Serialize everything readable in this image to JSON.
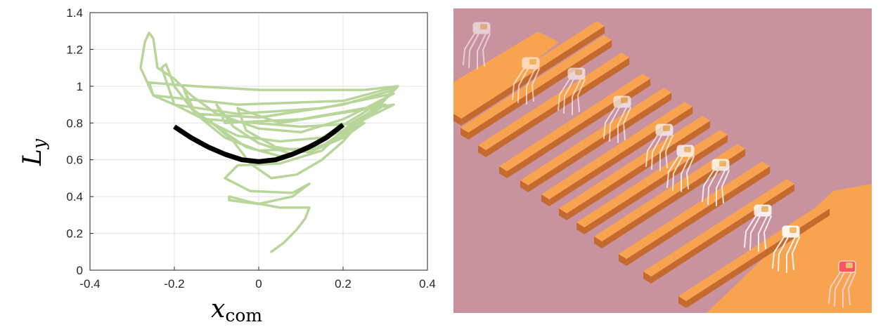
{
  "chart_data": {
    "type": "line",
    "xlabel": "x",
    "xlabel_sub": "com",
    "ylabel": "L",
    "ylabel_sub": "y",
    "xlim": [
      -0.4,
      0.4
    ],
    "ylim": [
      0,
      1.4
    ],
    "x_ticks": [
      "-0.4",
      "-0.2",
      "0",
      "0.2",
      "0.4"
    ],
    "y_ticks": [
      "0",
      "0.2",
      "0.4",
      "0.6",
      "0.8",
      "1",
      "1.2",
      "1.4"
    ],
    "x_tick_values": [
      -0.4,
      -0.2,
      0,
      0.2,
      0.4
    ],
    "y_tick_values": [
      0,
      0.2,
      0.4,
      0.6,
      0.8,
      1.0,
      1.2,
      1.4
    ],
    "grid": true,
    "series": [
      {
        "style": "trajectory",
        "color": "#b8d69a",
        "points": [
          [
            0.03,
            0.1
          ],
          [
            0.06,
            0.15
          ],
          [
            0.09,
            0.22
          ],
          [
            0.11,
            0.28
          ],
          [
            0.12,
            0.34
          ],
          [
            0.05,
            0.34
          ],
          [
            -0.02,
            0.37
          ],
          [
            -0.07,
            0.4
          ],
          [
            -0.07,
            0.38
          ],
          [
            0.0,
            0.36
          ],
          [
            0.08,
            0.4
          ],
          [
            0.12,
            0.47
          ],
          [
            0.08,
            0.42
          ],
          [
            -0.02,
            0.43
          ],
          [
            -0.08,
            0.5
          ],
          [
            -0.05,
            0.57
          ],
          [
            0.05,
            0.58
          ],
          [
            0.15,
            0.65
          ],
          [
            0.22,
            0.8
          ],
          [
            0.28,
            0.88
          ],
          [
            0.33,
            1.0
          ],
          [
            0.25,
            0.98
          ],
          [
            0.0,
            0.98
          ],
          [
            -0.15,
            1.0
          ],
          [
            -0.26,
            1.02
          ],
          [
            -0.25,
            0.95
          ],
          [
            -0.2,
            0.9
          ],
          [
            -0.13,
            0.82
          ],
          [
            -0.05,
            0.73
          ],
          [
            0.05,
            0.7
          ],
          [
            0.15,
            0.72
          ],
          [
            0.23,
            0.83
          ],
          [
            0.3,
            0.93
          ],
          [
            0.33,
            1.0
          ],
          [
            0.2,
            0.92
          ],
          [
            -0.05,
            0.9
          ],
          [
            -0.25,
            0.95
          ],
          [
            -0.28,
            1.1
          ],
          [
            -0.27,
            1.24
          ],
          [
            -0.26,
            1.29
          ],
          [
            -0.25,
            1.26
          ],
          [
            -0.24,
            1.1
          ],
          [
            -0.2,
            1.04
          ],
          [
            -0.16,
            0.95
          ],
          [
            -0.1,
            0.85
          ],
          [
            0.0,
            0.77
          ],
          [
            0.1,
            0.75
          ],
          [
            0.2,
            0.82
          ],
          [
            0.27,
            0.9
          ],
          [
            0.32,
            0.96
          ],
          [
            0.15,
            0.88
          ],
          [
            -0.05,
            0.85
          ],
          [
            -0.2,
            0.9
          ],
          [
            -0.23,
            1.1
          ],
          [
            -0.22,
            1.12
          ],
          [
            -0.2,
            1.0
          ],
          [
            -0.15,
            0.85
          ],
          [
            -0.08,
            0.72
          ],
          [
            0.0,
            0.65
          ],
          [
            0.1,
            0.66
          ],
          [
            0.2,
            0.76
          ],
          [
            0.27,
            0.87
          ],
          [
            0.32,
            0.98
          ],
          [
            0.2,
            0.9
          ],
          [
            0.0,
            0.83
          ],
          [
            -0.15,
            0.85
          ],
          [
            -0.18,
            1.0
          ],
          [
            -0.16,
            0.88
          ],
          [
            -0.1,
            0.78
          ],
          [
            -0.03,
            0.67
          ],
          [
            0.05,
            0.62
          ],
          [
            0.14,
            0.66
          ],
          [
            0.22,
            0.78
          ],
          [
            0.3,
            0.9
          ],
          [
            0.1,
            0.82
          ],
          [
            -0.08,
            0.8
          ],
          [
            -0.1,
            0.9
          ],
          [
            -0.06,
            0.78
          ],
          [
            0.0,
            0.69
          ],
          [
            0.08,
            0.63
          ],
          [
            0.18,
            0.7
          ],
          [
            0.25,
            0.82
          ],
          [
            0.32,
            0.9
          ],
          [
            0.05,
            0.8
          ],
          [
            -0.05,
            0.88
          ],
          [
            -0.03,
            0.76
          ],
          [
            0.04,
            0.67
          ],
          [
            0.12,
            0.64
          ],
          [
            0.2,
            0.72
          ],
          [
            0.25,
            0.8
          ],
          [
            0.1,
            0.78
          ],
          [
            -0.12,
            0.82
          ],
          [
            -0.06,
            0.7
          ],
          [
            -0.02,
            0.58
          ],
          [
            0.03,
            0.5
          ],
          [
            0.09,
            0.52
          ],
          [
            0.15,
            0.6
          ],
          [
            0.2,
            0.7
          ],
          [
            0.25,
            0.83
          ]
        ]
      },
      {
        "style": "fit",
        "color": "#000000",
        "points": [
          [
            -0.2,
            0.78
          ],
          [
            -0.16,
            0.72
          ],
          [
            -0.12,
            0.67
          ],
          [
            -0.08,
            0.63
          ],
          [
            -0.04,
            0.6
          ],
          [
            0.0,
            0.59
          ],
          [
            0.04,
            0.6
          ],
          [
            0.08,
            0.63
          ],
          [
            0.12,
            0.67
          ],
          [
            0.16,
            0.72
          ],
          [
            0.2,
            0.79
          ]
        ]
      }
    ]
  },
  "scene": {
    "description_icon": "robot-stepping-stones-render",
    "background_color": "#c9929f",
    "beam_color": "#f8a350",
    "beam_side_color": "#c46a2f",
    "robot_color": "#ffffff",
    "robot_highlight_color": "#f0c070",
    "robot_final_color": "#ff5560"
  }
}
